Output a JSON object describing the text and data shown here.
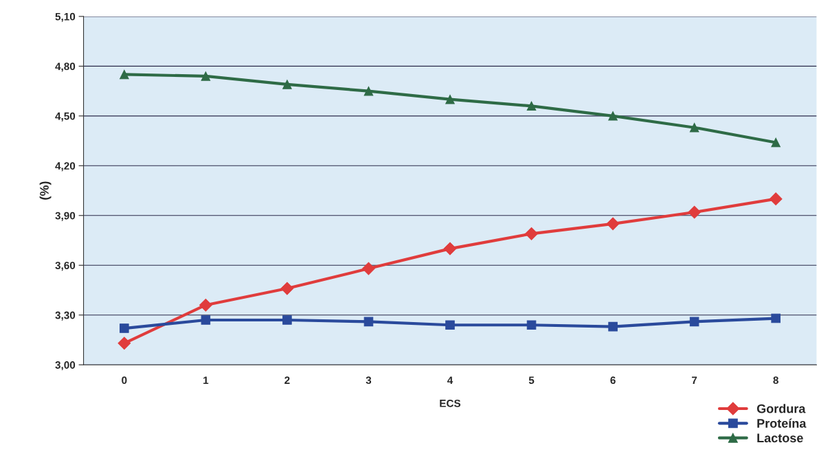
{
  "chart_data": {
    "type": "line",
    "xlabel": "ECS",
    "ylabel": "(%)",
    "categories": [
      "0",
      "1",
      "2",
      "3",
      "4",
      "5",
      "6",
      "7",
      "8"
    ],
    "series": [
      {
        "name": "Gordura",
        "color": "#e03c3c",
        "marker": "diamond",
        "values": [
          3.13,
          3.36,
          3.46,
          3.58,
          3.7,
          3.79,
          3.85,
          3.92,
          4.0
        ]
      },
      {
        "name": "Proteína",
        "color": "#2a4a9c",
        "marker": "square",
        "values": [
          3.22,
          3.27,
          3.27,
          3.26,
          3.24,
          3.24,
          3.23,
          3.26,
          3.28
        ]
      },
      {
        "name": "Lactose",
        "color": "#2e6b46",
        "marker": "triangle",
        "values": [
          4.75,
          4.74,
          4.69,
          4.65,
          4.6,
          4.56,
          4.5,
          4.43,
          4.34
        ]
      }
    ],
    "ylim": [
      3.0,
      5.1
    ],
    "yticks": [
      {
        "value": 3.0,
        "label": "3,00"
      },
      {
        "value": 3.3,
        "label": "3,30"
      },
      {
        "value": 3.6,
        "label": "3,60"
      },
      {
        "value": 3.9,
        "label": "3,90"
      },
      {
        "value": 4.2,
        "label": "4,20"
      },
      {
        "value": 4.5,
        "label": "4,50"
      },
      {
        "value": 4.8,
        "label": "4,80"
      },
      {
        "value": 5.1,
        "label": "5,10"
      }
    ],
    "grid": "y",
    "legend": "bottom right",
    "line_style": "solid"
  }
}
